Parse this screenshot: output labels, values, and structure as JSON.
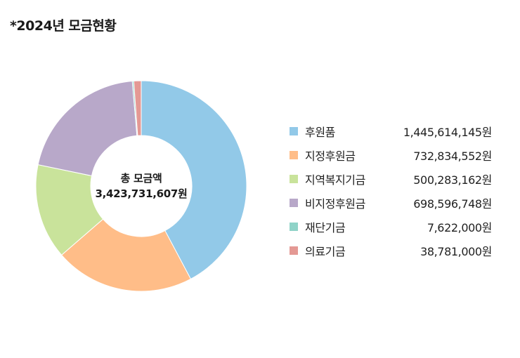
{
  "page": {
    "title": "*2024년 모금현황"
  },
  "chart_data": {
    "type": "pie",
    "variant": "donut",
    "title": "*2024년 모금현황",
    "center_label": {
      "line1": "총 모금액",
      "line2": "3,423,731,607원"
    },
    "legend_position": "right",
    "series": [
      {
        "name": "후원품",
        "value": 1445614145,
        "display": "1,445,614,145원",
        "color": "#92c9e8"
      },
      {
        "name": "지정후원금",
        "value": 732834552,
        "display": "732,834,552원",
        "color": "#ffbd88"
      },
      {
        "name": "지역복지기금",
        "value": 500283162,
        "display": "500,283,162원",
        "color": "#c9e39b"
      },
      {
        "name": "비지정후원금",
        "value": 698596748,
        "display": "698,596,748원",
        "color": "#b8a8c9"
      },
      {
        "name": "재단기금",
        "value": 7622000,
        "display": "7,622,000원",
        "color": "#8fd3c8"
      },
      {
        "name": "의료기금",
        "value": 38781000,
        "display": "38,781,000원",
        "color": "#e49994"
      }
    ]
  }
}
